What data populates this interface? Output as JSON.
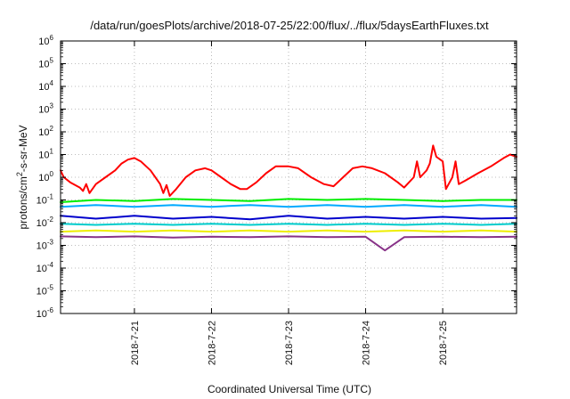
{
  "chart_data": {
    "type": "line",
    "title": "/data/run/goesPlots/archive/2018-07-25/22:00/flux/../flux/5daysEarthFluxes.txt",
    "xlabel": "Coordinated Universal Time (UTC)",
    "ylabel": {
      "prefix": "protons/cm",
      "superscript": "2",
      "suffix": "-s-sr-MeV"
    },
    "y_scale": "log",
    "ylim": [
      1e-06,
      1000000.0
    ],
    "y_ticks": [
      {
        "base": "10",
        "exp": "-6",
        "value": 1e-06
      },
      {
        "base": "10",
        "exp": "-5",
        "value": 1e-05
      },
      {
        "base": "10",
        "exp": "-4",
        "value": 0.0001
      },
      {
        "base": "10",
        "exp": "-3",
        "value": 0.001
      },
      {
        "base": "10",
        "exp": "-2",
        "value": 0.01
      },
      {
        "base": "10",
        "exp": "-1",
        "value": 0.1
      },
      {
        "base": "10",
        "exp": "0",
        "value": 1
      },
      {
        "base": "10",
        "exp": "1",
        "value": 10
      },
      {
        "base": "10",
        "exp": "2",
        "value": 100
      },
      {
        "base": "10",
        "exp": "3",
        "value": 1000
      },
      {
        "base": "10",
        "exp": "4",
        "value": 10000
      },
      {
        "base": "10",
        "exp": "5",
        "value": 100000
      },
      {
        "base": "10",
        "exp": "6",
        "value": 1000000
      }
    ],
    "xlim": [
      "2018-07-20T01:00",
      "2018-07-25T23:00"
    ],
    "x_ticks": [
      {
        "label": "2018-7-21",
        "value": "2018-07-21"
      },
      {
        "label": "2018-7-22",
        "value": "2018-07-22"
      },
      {
        "label": "2018-7-23",
        "value": "2018-07-23"
      },
      {
        "label": "2018-7-24",
        "value": "2018-07-24"
      },
      {
        "label": "2018-7-25",
        "value": "2018-07-25"
      }
    ],
    "grid": true,
    "legend": "none",
    "series": [
      {
        "color": "#ff0000",
        "points": [
          [
            "2018-07-20T01:00",
            2.0
          ],
          [
            "2018-07-20T02:00",
            1.0
          ],
          [
            "2018-07-20T04:00",
            0.6
          ],
          [
            "2018-07-20T07:00",
            0.35
          ],
          [
            "2018-07-20T08:00",
            0.25
          ],
          [
            "2018-07-20T09:00",
            0.5
          ],
          [
            "2018-07-20T10:00",
            0.2
          ],
          [
            "2018-07-20T12:00",
            0.5
          ],
          [
            "2018-07-20T15:00",
            1.0
          ],
          [
            "2018-07-20T18:00",
            2.0
          ],
          [
            "2018-07-20T20:00",
            4.0
          ],
          [
            "2018-07-20T22:00",
            6.0
          ],
          [
            "2018-07-21T00:00",
            7.0
          ],
          [
            "2018-07-21T02:00",
            5.0
          ],
          [
            "2018-07-21T05:00",
            2.0
          ],
          [
            "2018-07-21T08:00",
            0.5
          ],
          [
            "2018-07-21T09:00",
            0.2
          ],
          [
            "2018-07-21T10:00",
            0.45
          ],
          [
            "2018-07-21T11:00",
            0.15
          ],
          [
            "2018-07-21T13:00",
            0.3
          ],
          [
            "2018-07-21T16:00",
            1.0
          ],
          [
            "2018-07-21T19:00",
            2.0
          ],
          [
            "2018-07-21T22:00",
            2.5
          ],
          [
            "2018-07-22T00:00",
            2.0
          ],
          [
            "2018-07-22T03:00",
            1.0
          ],
          [
            "2018-07-22T06:00",
            0.5
          ],
          [
            "2018-07-22T09:00",
            0.3
          ],
          [
            "2018-07-22T11:00",
            0.3
          ],
          [
            "2018-07-22T14:00",
            0.6
          ],
          [
            "2018-07-22T17:00",
            1.5
          ],
          [
            "2018-07-22T20:00",
            3.0
          ],
          [
            "2018-07-23T00:00",
            3.0
          ],
          [
            "2018-07-23T03:00",
            2.5
          ],
          [
            "2018-07-23T07:00",
            1.0
          ],
          [
            "2018-07-23T11:00",
            0.5
          ],
          [
            "2018-07-23T14:00",
            0.4
          ],
          [
            "2018-07-23T17:00",
            1.0
          ],
          [
            "2018-07-23T20:00",
            2.5
          ],
          [
            "2018-07-23T23:00",
            3.0
          ],
          [
            "2018-07-24T02:00",
            2.5
          ],
          [
            "2018-07-24T06:00",
            1.5
          ],
          [
            "2018-07-24T10:00",
            0.6
          ],
          [
            "2018-07-24T12:00",
            0.35
          ],
          [
            "2018-07-24T13:00",
            0.5
          ],
          [
            "2018-07-24T15:00",
            1.0
          ],
          [
            "2018-07-24T16:00",
            5.0
          ],
          [
            "2018-07-24T17:00",
            1.0
          ],
          [
            "2018-07-24T19:00",
            2.0
          ],
          [
            "2018-07-24T20:00",
            4.0
          ],
          [
            "2018-07-24T21:00",
            25.0
          ],
          [
            "2018-07-24T22:00",
            8.0
          ],
          [
            "2018-07-25T00:00",
            5.0
          ],
          [
            "2018-07-25T01:00",
            0.3
          ],
          [
            "2018-07-25T03:00",
            1.0
          ],
          [
            "2018-07-25T04:00",
            5.0
          ],
          [
            "2018-07-25T05:00",
            0.5
          ],
          [
            "2018-07-25T07:00",
            0.7
          ],
          [
            "2018-07-25T11:00",
            1.5
          ],
          [
            "2018-07-25T15:00",
            3.0
          ],
          [
            "2018-07-25T19:00",
            7.0
          ],
          [
            "2018-07-25T21:00",
            10.0
          ],
          [
            "2018-07-25T23:00",
            8.0
          ]
        ]
      },
      {
        "color": "#00ee00",
        "points": [
          [
            "2018-07-20T01:00",
            0.08
          ],
          [
            "2018-07-20T12:00",
            0.1
          ],
          [
            "2018-07-21T00:00",
            0.09
          ],
          [
            "2018-07-21T12:00",
            0.11
          ],
          [
            "2018-07-22T00:00",
            0.1
          ],
          [
            "2018-07-22T12:00",
            0.09
          ],
          [
            "2018-07-23T00:00",
            0.11
          ],
          [
            "2018-07-23T12:00",
            0.1
          ],
          [
            "2018-07-24T00:00",
            0.11
          ],
          [
            "2018-07-24T12:00",
            0.1
          ],
          [
            "2018-07-25T00:00",
            0.09
          ],
          [
            "2018-07-25T12:00",
            0.1
          ],
          [
            "2018-07-25T23:00",
            0.1
          ]
        ]
      },
      {
        "color": "#00aaff",
        "points": [
          [
            "2018-07-20T01:00",
            0.05
          ],
          [
            "2018-07-20T12:00",
            0.06
          ],
          [
            "2018-07-21T00:00",
            0.05
          ],
          [
            "2018-07-21T12:00",
            0.06
          ],
          [
            "2018-07-22T00:00",
            0.05
          ],
          [
            "2018-07-22T12:00",
            0.06
          ],
          [
            "2018-07-23T00:00",
            0.05
          ],
          [
            "2018-07-23T12:00",
            0.06
          ],
          [
            "2018-07-24T00:00",
            0.05
          ],
          [
            "2018-07-24T12:00",
            0.06
          ],
          [
            "2018-07-25T00:00",
            0.05
          ],
          [
            "2018-07-25T12:00",
            0.06
          ],
          [
            "2018-07-25T23:00",
            0.05
          ]
        ]
      },
      {
        "color": "#0000cc",
        "points": [
          [
            "2018-07-20T01:00",
            0.02
          ],
          [
            "2018-07-20T12:00",
            0.015
          ],
          [
            "2018-07-21T00:00",
            0.02
          ],
          [
            "2018-07-21T12:00",
            0.015
          ],
          [
            "2018-07-22T00:00",
            0.018
          ],
          [
            "2018-07-22T12:00",
            0.014
          ],
          [
            "2018-07-23T00:00",
            0.02
          ],
          [
            "2018-07-23T12:00",
            0.015
          ],
          [
            "2018-07-24T00:00",
            0.018
          ],
          [
            "2018-07-24T12:00",
            0.015
          ],
          [
            "2018-07-25T00:00",
            0.018
          ],
          [
            "2018-07-25T12:00",
            0.015
          ],
          [
            "2018-07-25T23:00",
            0.016
          ]
        ]
      },
      {
        "color": "#00cccc",
        "points": [
          [
            "2018-07-20T01:00",
            0.009
          ],
          [
            "2018-07-20T12:00",
            0.008
          ],
          [
            "2018-07-21T00:00",
            0.009
          ],
          [
            "2018-07-21T12:00",
            0.008
          ],
          [
            "2018-07-22T00:00",
            0.009
          ],
          [
            "2018-07-22T12:00",
            0.008
          ],
          [
            "2018-07-23T00:00",
            0.009
          ],
          [
            "2018-07-23T12:00",
            0.008
          ],
          [
            "2018-07-24T00:00",
            0.009
          ],
          [
            "2018-07-24T12:00",
            0.008
          ],
          [
            "2018-07-25T00:00",
            0.009
          ],
          [
            "2018-07-25T12:00",
            0.008
          ],
          [
            "2018-07-25T23:00",
            0.009
          ]
        ]
      },
      {
        "color": "#eeee00",
        "points": [
          [
            "2018-07-20T01:00",
            0.004
          ],
          [
            "2018-07-20T12:00",
            0.0045
          ],
          [
            "2018-07-21T00:00",
            0.004
          ],
          [
            "2018-07-21T12:00",
            0.0045
          ],
          [
            "2018-07-22T00:00",
            0.004
          ],
          [
            "2018-07-22T12:00",
            0.0045
          ],
          [
            "2018-07-23T00:00",
            0.004
          ],
          [
            "2018-07-23T12:00",
            0.0045
          ],
          [
            "2018-07-24T00:00",
            0.004
          ],
          [
            "2018-07-24T12:00",
            0.0045
          ],
          [
            "2018-07-25T00:00",
            0.004
          ],
          [
            "2018-07-25T12:00",
            0.0045
          ],
          [
            "2018-07-25T23:00",
            0.004
          ]
        ]
      },
      {
        "color": "#883388",
        "points": [
          [
            "2018-07-20T01:00",
            0.0025
          ],
          [
            "2018-07-20T12:00",
            0.0023
          ],
          [
            "2018-07-21T00:00",
            0.0025
          ],
          [
            "2018-07-21T12:00",
            0.0022
          ],
          [
            "2018-07-22T00:00",
            0.0024
          ],
          [
            "2018-07-22T12:00",
            0.0023
          ],
          [
            "2018-07-23T00:00",
            0.0025
          ],
          [
            "2018-07-23T12:00",
            0.0023
          ],
          [
            "2018-07-24T00:00",
            0.0024
          ],
          [
            "2018-07-24T06:00",
            0.0006
          ],
          [
            "2018-07-24T12:00",
            0.0023
          ],
          [
            "2018-07-25T00:00",
            0.0024
          ],
          [
            "2018-07-25T12:00",
            0.0023
          ],
          [
            "2018-07-25T23:00",
            0.0024
          ]
        ]
      }
    ]
  }
}
